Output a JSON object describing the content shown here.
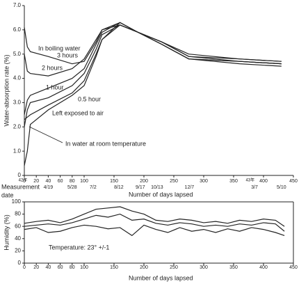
{
  "chart_data": [
    {
      "type": "line",
      "y_label": "Water-absorption rate (%)",
      "x_label": "Number of days lapsed",
      "date_axis_label": [
        "Measurement",
        "date"
      ],
      "xlim": [
        0,
        450
      ],
      "ylim": [
        0,
        7
      ],
      "xticks": [
        0,
        20,
        40,
        60,
        80,
        100,
        150,
        200,
        250,
        300,
        350,
        400,
        450
      ],
      "yticks": [
        0,
        {
          "value": 1,
          "label": "1.0"
        },
        {
          "value": 2,
          "label": "2.0"
        },
        {
          "value": 3,
          "label": "3.0"
        },
        {
          "value": 4,
          "label": "4.0"
        },
        {
          "value": 5,
          "label": "5.0"
        },
        {
          "value": 6,
          "label": "6.0"
        },
        {
          "value": 7,
          "label": "7.0"
        }
      ],
      "date_ticks": [
        {
          "value": 40,
          "label": "4/19"
        },
        {
          "value": 80,
          "label": "5/28"
        },
        {
          "value": 115,
          "label": "7/2"
        },
        {
          "value": 158,
          "label": "8/12"
        },
        {
          "value": 194,
          "label": "9/17"
        },
        {
          "value": 222,
          "label": "10/13"
        },
        {
          "value": 276,
          "label": "12/7"
        },
        {
          "value": 385,
          "label": "3/7"
        },
        {
          "value": 430,
          "label": "5/10"
        }
      ],
      "year_marks": [
        {
          "value": 0,
          "label": "42年"
        },
        {
          "value": 380,
          "label": "43年"
        }
      ],
      "annotations": [
        "In boiling water",
        "3 hours",
        "2 hours",
        "1 hour",
        "0.5 hour",
        "Left exposed to air",
        "In water at room temperature"
      ],
      "x": [
        0,
        5,
        10,
        40,
        80,
        100,
        120,
        130,
        160,
        190,
        230,
        275,
        360,
        430
      ],
      "color": "#222222",
      "series": [
        {
          "values": [
            6.1,
            5.3,
            5.1,
            4.9,
            4.6,
            4.7,
            5.5,
            6.0,
            6.2,
            5.9,
            5.5,
            5.0,
            4.8,
            4.7
          ]
        },
        {
          "values": [
            5.0,
            4.3,
            4.2,
            4.1,
            4.4,
            4.8,
            5.6,
            6.0,
            6.3,
            5.9,
            5.5,
            4.9,
            4.8,
            4.7
          ]
        },
        {
          "values": [
            2.5,
            3.1,
            3.3,
            3.6,
            4.0,
            4.4,
            5.4,
            5.9,
            6.3,
            5.9,
            5.4,
            4.8,
            4.7,
            4.6
          ]
        },
        {
          "values": [
            2.0,
            2.7,
            3.0,
            3.2,
            3.7,
            4.2,
            5.2,
            5.8,
            6.2,
            5.9,
            5.4,
            4.8,
            4.7,
            4.6
          ]
        },
        {
          "values": [
            2.3,
            2.4,
            2.5,
            2.9,
            3.4,
            3.9,
            5.0,
            5.6,
            6.2,
            5.9,
            5.4,
            4.8,
            4.6,
            4.5
          ]
        },
        {
          "values": [
            0.4,
            1.0,
            2.1,
            2.7,
            3.3,
            3.7,
            4.9,
            5.6,
            6.3,
            5.9,
            5.5,
            4.9,
            4.7,
            4.6
          ]
        }
      ]
    },
    {
      "type": "line",
      "y_label": "Humidity (%)",
      "x_label": "Number of days lapsed",
      "xlim": [
        0,
        450
      ],
      "ylim": [
        0,
        100
      ],
      "xticks": [
        0,
        20,
        40,
        60,
        80,
        100,
        150,
        200,
        250,
        300,
        350,
        400,
        450
      ],
      "yticks": [
        0,
        20,
        40,
        60,
        80,
        100
      ],
      "annotations": [
        "Temperature: 23° +/-1"
      ],
      "x": [
        0,
        20,
        40,
        60,
        80,
        100,
        120,
        140,
        160,
        180,
        200,
        220,
        240,
        260,
        280,
        300,
        320,
        340,
        360,
        380,
        400,
        420,
        435
      ],
      "color": "#222222",
      "series": [
        {
          "values": [
            65,
            68,
            70,
            66,
            72,
            80,
            88,
            90,
            92,
            85,
            80,
            70,
            68,
            72,
            70,
            66,
            68,
            65,
            70,
            68,
            72,
            70,
            60
          ]
        },
        {
          "values": [
            60,
            62,
            64,
            62,
            66,
            72,
            78,
            75,
            80,
            70,
            72,
            65,
            62,
            66,
            64,
            60,
            62,
            60,
            64,
            62,
            66,
            64,
            52
          ]
        },
        {
          "values": [
            55,
            58,
            50,
            52,
            58,
            62,
            60,
            56,
            58,
            45,
            62,
            55,
            50,
            58,
            52,
            55,
            50,
            56,
            52,
            58,
            55,
            50,
            45
          ]
        }
      ]
    }
  ]
}
